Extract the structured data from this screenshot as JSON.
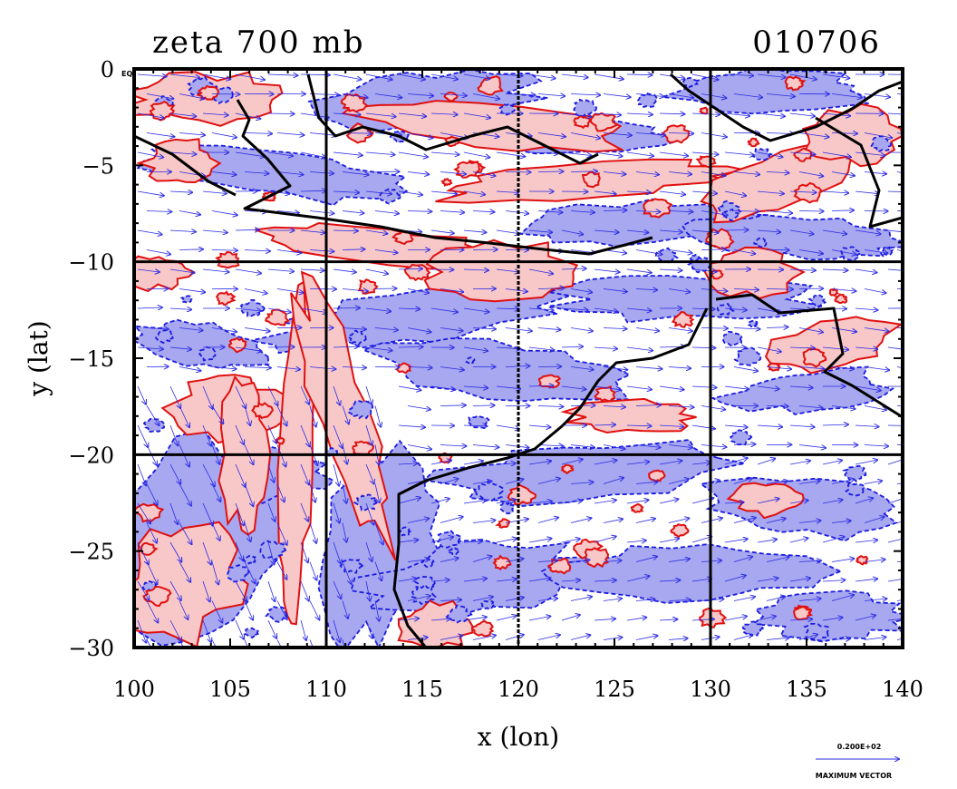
{
  "chart_data": {
    "type": "heatmap",
    "title": "zeta 700 mb",
    "date": "010706",
    "xlabel": "x (lon)",
    "ylabel": "y (lat)",
    "xlim": [
      100,
      140
    ],
    "ylim": [
      -30,
      0
    ],
    "xticks": [
      100,
      105,
      110,
      115,
      120,
      125,
      130,
      135,
      140
    ],
    "yticks": [
      0,
      -5,
      -10,
      -15,
      -20,
      -25,
      -30
    ],
    "x_tick_labels": [
      "100",
      "105",
      "110",
      "115",
      "120",
      "125",
      "130",
      "135",
      "140"
    ],
    "y_tick_labels": [
      "0",
      "−5",
      "−10",
      "−15",
      "−20",
      "−25",
      "−30"
    ],
    "corner_label": "EQ",
    "grid": true,
    "grid_lines_lon": [
      110,
      120,
      130
    ],
    "grid_lines_lat": [
      -10,
      -20
    ],
    "contours": [
      {
        "name": "positive vorticity",
        "line_color": "#e01010",
        "fill_color": "#f8c8c8"
      },
      {
        "name": "negative vorticity",
        "line_color": "#1a1ae0",
        "fill_color": "#a8a8f0"
      }
    ],
    "vector_color": "#2a2ae6",
    "coastline_color": "#000000",
    "reference_vector": {
      "value": "0.200E+02",
      "label": "MAXIMUM VECTOR"
    },
    "features": [
      {
        "name": "Java-Bali coastline",
        "lon_range": [
          105,
          125
        ],
        "lat": -8
      },
      {
        "name": "Australian coastline",
        "lon_range": [
          113,
          140
        ],
        "lat_range": [
          -30,
          -11
        ]
      },
      {
        "name": "New Guinea coastline",
        "lon_range": [
          130,
          140
        ],
        "lat_range": [
          -10,
          -2
        ]
      }
    ]
  }
}
